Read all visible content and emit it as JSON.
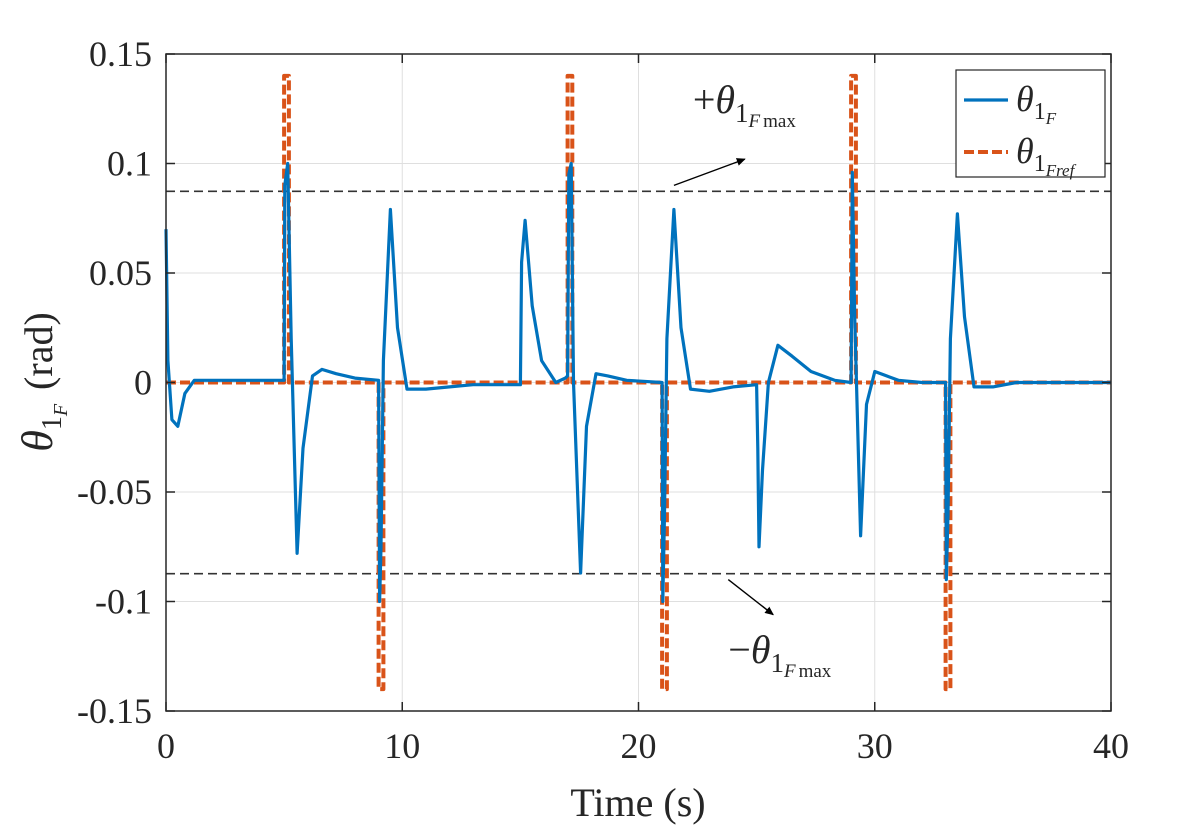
{
  "chart_data": {
    "type": "line",
    "xlabel": "Time (s)",
    "ylabel": {
      "symbol": "θ",
      "sub": "1",
      "subsub": "F",
      "unit": "(rad)"
    },
    "xlim": [
      0,
      40
    ],
    "ylim": [
      -0.15,
      0.15
    ],
    "xticks": [
      0,
      10,
      20,
      30,
      40
    ],
    "xtick_labels": [
      "0",
      "10",
      "20",
      "30",
      "40"
    ],
    "yticks": [
      0.15,
      0.1,
      0.05,
      0,
      -0.05,
      -0.1,
      -0.15
    ],
    "ytick_labels": [
      "0.15",
      "0.1",
      "0.05",
      "0",
      "-0.05",
      "-0.1",
      "-0.15"
    ],
    "grid": true,
    "legend_position": "top-right",
    "colors": {
      "theta": "#0072bd",
      "theta_ref": "#d95319",
      "limit": "#333333"
    },
    "series": [
      {
        "name": "θ1F",
        "legend": {
          "symbol": "θ",
          "sub": "1",
          "subsub": "F"
        },
        "style": "solid",
        "x": [
          0,
          0.08,
          0.25,
          0.5,
          0.8,
          1.2,
          2,
          5,
          5.03,
          5.15,
          5.3,
          5.55,
          5.8,
          6.2,
          6.6,
          7.2,
          8,
          9,
          9.04,
          9.1,
          9.2,
          9.5,
          9.8,
          10.2,
          11,
          12,
          13,
          15,
          15.05,
          15.2,
          15.5,
          15.9,
          16.5,
          16.9,
          17,
          17.05,
          17.15,
          17.25,
          17.55,
          17.8,
          18.2,
          18.7,
          19.5,
          21,
          21.03,
          21.1,
          21.2,
          21.5,
          21.8,
          22.2,
          23,
          24,
          25,
          25.05,
          25.1,
          25.25,
          25.5,
          25.9,
          26.5,
          27.3,
          28.3,
          29,
          29.05,
          29.15,
          29.4,
          29.65,
          30,
          30.5,
          31,
          32,
          33,
          33.03,
          33.1,
          33.2,
          33.5,
          33.8,
          34.2,
          35,
          36,
          40
        ],
        "y": [
          0.07,
          0.01,
          -0.017,
          -0.02,
          -0.005,
          0.001,
          0.001,
          0.001,
          0.09,
          0.1,
          0.02,
          -0.078,
          -0.03,
          0.003,
          0.006,
          0.004,
          0.002,
          0.001,
          -0.1,
          -0.075,
          0.01,
          0.079,
          0.025,
          -0.003,
          -0.003,
          -0.002,
          -0.001,
          -0.001,
          0.055,
          0.074,
          0.035,
          0.01,
          0.0,
          0.002,
          0.003,
          0.095,
          0.1,
          0.0,
          -0.087,
          -0.02,
          0.004,
          0.003,
          0.001,
          0.0,
          -0.1,
          -0.06,
          0.02,
          0.079,
          0.025,
          -0.003,
          -0.004,
          -0.002,
          -0.001,
          -0.03,
          -0.075,
          -0.04,
          0.0,
          0.017,
          0.012,
          0.005,
          0.001,
          0.0,
          0.096,
          0.03,
          -0.07,
          -0.01,
          0.005,
          0.003,
          0.001,
          0.0,
          0.0,
          -0.09,
          -0.06,
          0.02,
          0.077,
          0.03,
          -0.002,
          -0.002,
          0.0,
          0.0
        ]
      },
      {
        "name": "θ1Fref",
        "legend": {
          "symbol": "θ",
          "sub": "1",
          "subsub": "Fref"
        },
        "style": "dashed",
        "x": [
          0,
          5,
          5,
          5.2,
          5.2,
          9,
          9,
          9.2,
          9.2,
          17,
          17,
          17.2,
          17.2,
          21,
          21,
          21.2,
          21.2,
          29,
          29,
          29.2,
          29.2,
          33,
          33,
          33.2,
          33.2,
          40
        ],
        "y": [
          0,
          0,
          0.14,
          0.14,
          0,
          0,
          -0.14,
          -0.14,
          0,
          0,
          0.14,
          0.14,
          0,
          0,
          -0.14,
          -0.14,
          0,
          0,
          0.14,
          0.14,
          0,
          0,
          -0.14,
          -0.14,
          0,
          0
        ]
      }
    ],
    "limit_lines": [
      0.0873,
      -0.0873
    ],
    "annotations": [
      {
        "id": "upper",
        "sign": "+",
        "symbol": "θ",
        "sub": "1",
        "subsub": "F",
        "subsub_extra": "max",
        "x": 22.3,
        "y": 0.123,
        "arrow_from": [
          21.5,
          0.09
        ],
        "arrow_to": [
          24.5,
          0.102
        ]
      },
      {
        "id": "lower",
        "sign": "−",
        "symbol": "θ",
        "sub": "1",
        "subsub": "F",
        "subsub_extra": "max",
        "x": 23.8,
        "y": -0.128,
        "arrow_from": [
          23.8,
          -0.09
        ],
        "arrow_to": [
          25.7,
          -0.106
        ]
      }
    ]
  }
}
